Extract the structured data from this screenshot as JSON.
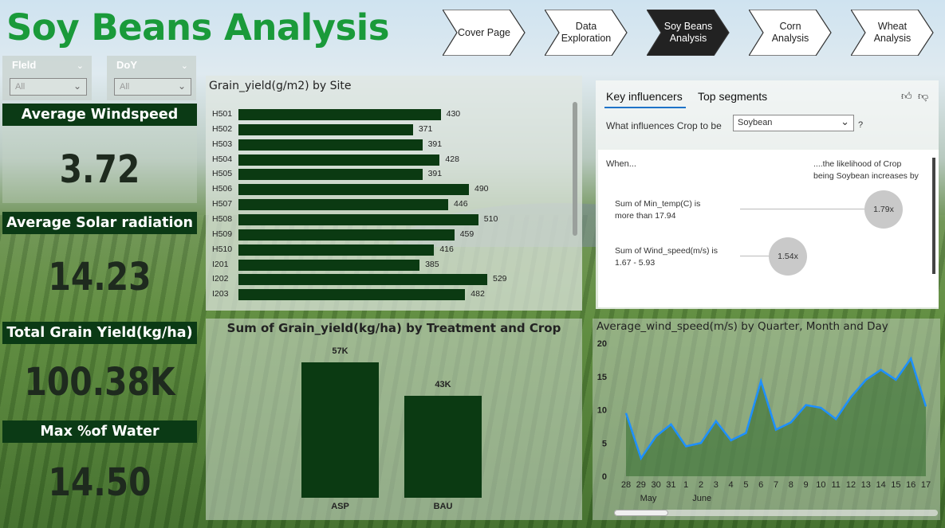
{
  "page_title": "Soy Beans Analysis",
  "nav": [
    {
      "label": "Cover Page",
      "active": false
    },
    {
      "label": "Data Exploration",
      "active": false
    },
    {
      "label": "Soy Beans Analysis",
      "active": true
    },
    {
      "label": "Corn Analysis",
      "active": false
    },
    {
      "label": "Wheat Analysis",
      "active": false
    }
  ],
  "slicers": {
    "field": {
      "label": "Fleld",
      "value": "All"
    },
    "doy": {
      "label": "DoY",
      "value": "All"
    }
  },
  "kpis": {
    "windspeed": {
      "label": "Average Windspeed",
      "value": "3.72"
    },
    "solar": {
      "label": "Average Solar radiation",
      "value": "14.23"
    },
    "grain": {
      "label": "Total Grain Yield(kg/ha)",
      "value": "100.38K"
    },
    "water": {
      "label": "Max %of Water",
      "value": "14.50"
    }
  },
  "site_chart": {
    "title": "Grain_yield(g/m2) by Site",
    "chart_data": {
      "type": "bar",
      "orientation": "horizontal",
      "title": "Grain_yield(g/m2) by Site",
      "categories": [
        "H501",
        "H502",
        "H503",
        "H504",
        "H505",
        "H506",
        "H507",
        "H508",
        "H509",
        "H510",
        "I201",
        "I202",
        "I203"
      ],
      "values": [
        430,
        371,
        391,
        428,
        391,
        490,
        446,
        510,
        459,
        416,
        385,
        529,
        482
      ],
      "value_labels": [
        "430",
        "371",
        "391",
        "428",
        "391",
        "490",
        "446",
        "510",
        "459",
        "416",
        "385",
        "529",
        "482"
      ],
      "color": "#0b3a12"
    }
  },
  "treatment_chart": {
    "title": "Sum of Grain_yield(kg/ha) by Treatment and Crop",
    "chart_data": {
      "type": "bar",
      "title": "Sum of Grain_yield(kg/ha) by Treatment and Crop",
      "categories": [
        "ASP",
        "BAU"
      ],
      "values": [
        57000,
        43000
      ],
      "value_labels": [
        "57K",
        "43K"
      ],
      "color": "#0b3a12"
    }
  },
  "key_influencers": {
    "tabs": [
      "Key influencers",
      "Top segments"
    ],
    "question": "What influences Crop to be",
    "selected_value": "Soybean",
    "question_mark": "?",
    "when_label": "When...",
    "likelihood_label_1": "....the likelihood of Crop",
    "likelihood_label_2": "being Soybean increases by",
    "items": [
      {
        "text_1": "Sum of Min_temp(C) is",
        "text_2": "more than 17.94",
        "factor": "1.79x"
      },
      {
        "text_1": "Sum of Wind_speed(m/s) is",
        "text_2": "1.67 - 5.93",
        "factor": "1.54x"
      }
    ]
  },
  "wind_chart": {
    "title": "Average_wind_speed(m/s) by Quarter, Month and Day",
    "chart_data": {
      "type": "area",
      "title": "Average_wind_speed(m/s) by Quarter, Month and Day",
      "x": [
        "28",
        "29",
        "30",
        "31",
        "1",
        "2",
        "3",
        "4",
        "5",
        "6",
        "7",
        "8",
        "9",
        "10",
        "11",
        "12",
        "13",
        "14",
        "15",
        "16",
        "17"
      ],
      "months": [
        {
          "label": "May",
          "start_index": 0
        },
        {
          "label": "June",
          "start_index": 4
        }
      ],
      "values": [
        9.5,
        2.7,
        6.0,
        7.8,
        4.5,
        5.0,
        8.3,
        5.4,
        6.5,
        14.3,
        7.0,
        8.1,
        10.7,
        10.3,
        8.6,
        11.9,
        14.5,
        16.0,
        14.5,
        17.7,
        10.5
      ],
      "yticks": [
        0,
        5,
        10,
        15,
        20
      ],
      "ylim": [
        0,
        20
      ],
      "line_color": "#1e90ff",
      "fill_color": "#2f6a2a"
    }
  }
}
